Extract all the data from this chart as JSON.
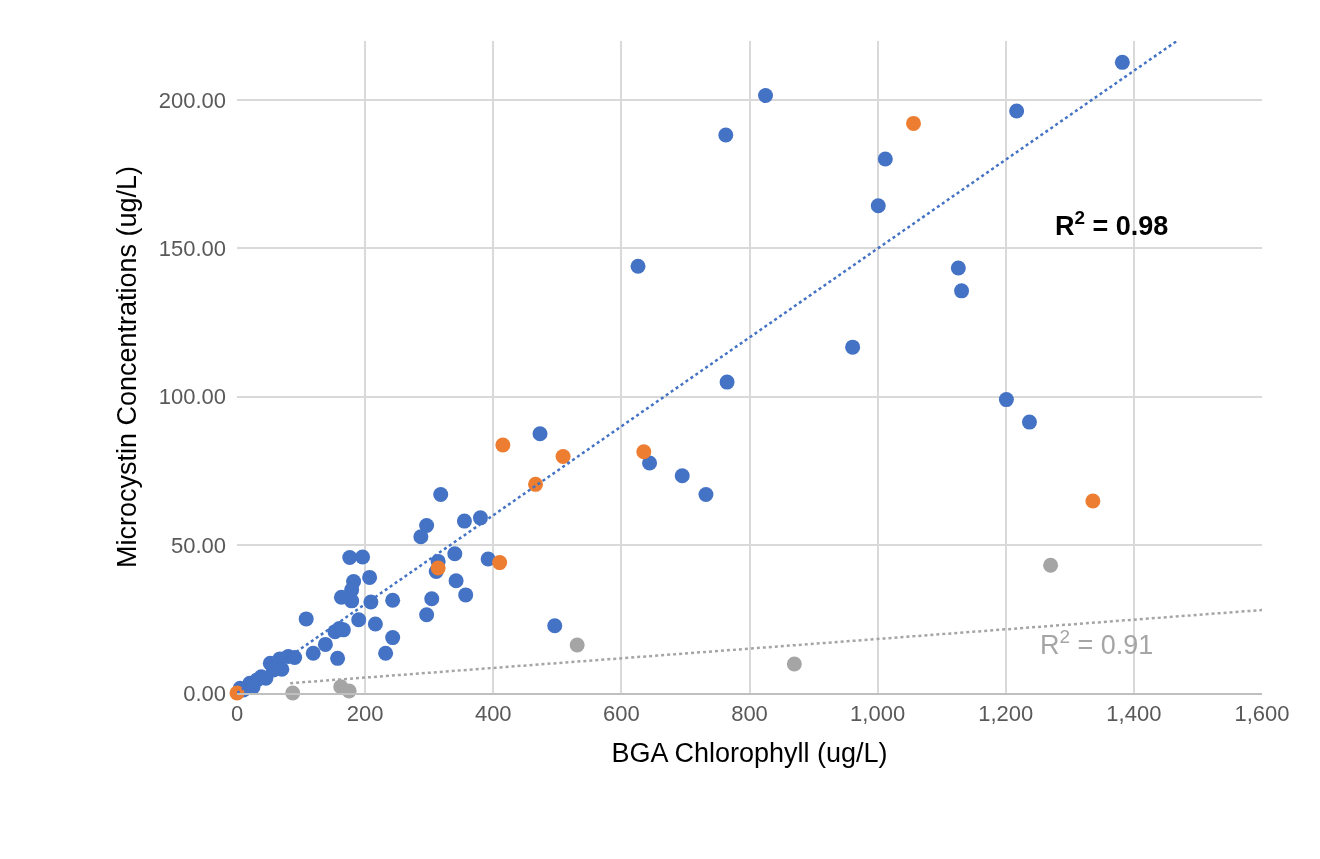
{
  "chart_data": {
    "type": "scatter",
    "xlabel": "BGA Chlorophyll (ug/L)",
    "ylabel": "Microcystin Concentrations (ug/L)",
    "xlim": [
      0,
      1600
    ],
    "ylim": [
      0,
      220
    ],
    "xticks": [
      0,
      200,
      400,
      600,
      800,
      {
        "value": 1000,
        "label": "1,000"
      },
      {
        "value": 1200,
        "label": "1,200"
      },
      {
        "value": 1400,
        "label": "1,400"
      },
      {
        "value": 1600,
        "label": "1,600"
      }
    ],
    "yticks": [
      {
        "value": 0,
        "label": "0.00"
      },
      {
        "value": 50,
        "label": "50.00"
      },
      {
        "value": 100,
        "label": "100.00"
      },
      {
        "value": 150,
        "label": "150.00"
      },
      {
        "value": 200,
        "label": "200.00"
      }
    ],
    "grid": true,
    "marker": "circle",
    "series": [
      {
        "color": "#4472c4",
        "x": [
          1382,
          825,
          763,
          1217,
          1012,
          1001,
          626,
          1126,
          1131,
          961,
          765,
          1201,
          1237,
          644,
          695,
          732,
          473,
          318,
          355,
          380,
          296,
          287,
          176,
          196,
          340,
          392,
          314,
          311,
          207,
          342,
          182,
          179,
          357,
          163,
          179,
          209,
          243,
          304,
          296,
          108,
          190,
          216,
          496,
          160,
          153,
          166,
          138,
          119,
          157,
          232,
          243,
          80,
          52,
          38,
          20,
          5,
          67,
          31,
          57,
          10,
          25,
          45,
          70,
          90
        ],
        "values": [
          212.8,
          201.6,
          188.3,
          196.4,
          180.2,
          164.4,
          144.0,
          143.4,
          135.7,
          116.7,
          104.9,
          99.0,
          91.4,
          77.6,
          73.3,
          67.0,
          87.5,
          67.0,
          58.0,
          59.1,
          56.5,
          52.7,
          45.7,
          45.9,
          47.0,
          45.2,
          44.4,
          41.0,
          39.0,
          37.9,
          37.6,
          34.8,
          33.1,
          32.3,
          31.1,
          30.7,
          31.3,
          31.8,
          26.4,
          25.0,
          24.7,
          23.3,
          22.7,
          21.8,
          20.7,
          21.3,
          16.4,
          13.4,
          11.7,
          13.4,
          18.7,
          12.3,
          10.0,
          5.5,
          3.3,
          1.6,
          11.5,
          4.4,
          7.8,
          1.0,
          2.0,
          5.0,
          8.0,
          12.0
        ]
      },
      {
        "color": "#ed7d31",
        "x": [
          1056,
          635,
          1336,
          415,
          509,
          466,
          410,
          314,
          0
        ],
        "values": [
          192.2,
          81.4,
          64.8,
          83.7,
          79.8,
          70.4,
          44.0,
          42.2,
          0
        ]
      },
      {
        "color": "#a5a5a5",
        "x": [
          1270,
          870,
          531,
          87,
          162,
          175
        ],
        "values": [
          43.1,
          9.8,
          16.2,
          0,
          2.1,
          0.7
        ]
      },
      {
        "type": "line",
        "marker": "none",
        "color": "#4472c4",
        "line_style": "dotted",
        "x": [
          0,
          1467
        ],
        "values": [
          0,
          220
        ]
      },
      {
        "type": "line",
        "marker": "none",
        "color": "#a5a5a5",
        "line_style": "dotted",
        "x": [
          83,
          1600
        ],
        "values": [
          3.3,
          28.0
        ]
      }
    ],
    "annotations": [
      "R$^{2}$ = 0.98",
      "R$^{2}$ = 0.91"
    ]
  }
}
